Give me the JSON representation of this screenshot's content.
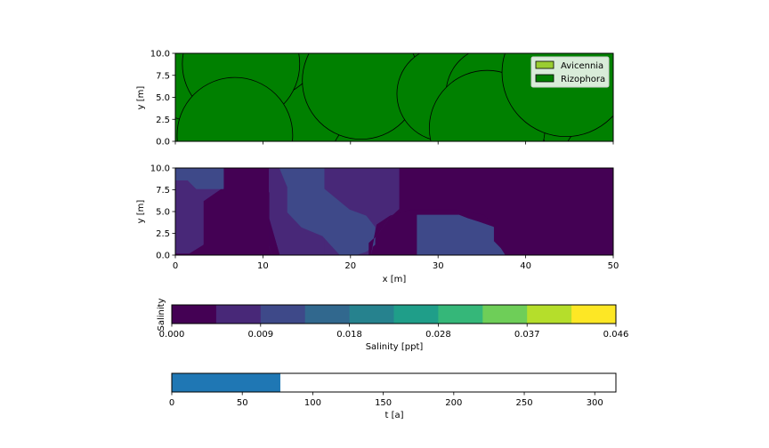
{
  "colors": {
    "axis": "#000000",
    "tree_rizophora": "#008000",
    "tree_avicennia": "#9acd32",
    "progress": "#1f77b4",
    "viridis_levels": [
      "#440154",
      "#482878",
      "#3e4989",
      "#31688e",
      "#26828e",
      "#1f9e89",
      "#35b779",
      "#6ece58",
      "#b5de2b",
      "#fde725"
    ]
  },
  "chart_data": [
    {
      "type": "scatter",
      "subtype": "tree-crowns",
      "ylabel": "y [m]",
      "xlim": [
        0,
        50
      ],
      "ylim": [
        0,
        10
      ],
      "yticks": [
        "0.0",
        "2.5",
        "5.0",
        "7.5",
        "10.0"
      ],
      "legend": {
        "placement": "top-right",
        "items": [
          {
            "label": "Avicennia",
            "color": "#9acd32"
          },
          {
            "label": "Rizophora",
            "color": "#008000"
          }
        ]
      },
      "trees": [
        {
          "species": "Rizophora",
          "x": 9,
          "y": 13,
          "r": 8.5
        },
        {
          "species": "Rizophora",
          "x": 28,
          "y": 13,
          "r": 8.5
        },
        {
          "species": "Rizophora",
          "x": 45,
          "y": 13,
          "r": 8.5
        },
        {
          "species": "Rizophora",
          "x": -2,
          "y": -4,
          "r": 7
        },
        {
          "species": "Rizophora",
          "x": 24,
          "y": -3,
          "r": 6.5
        },
        {
          "species": "Rizophora",
          "x": 37,
          "y": -3,
          "r": 6
        },
        {
          "species": "Rizophora",
          "x": 50,
          "y": -3,
          "r": 6
        },
        {
          "species": "Rizophora",
          "x": 7.5,
          "y": 8.8,
          "r": 6.7
        },
        {
          "species": "Rizophora",
          "x": 21.2,
          "y": 6.9,
          "r": 6.7
        },
        {
          "species": "Rizophora",
          "x": 30.7,
          "y": 5.4,
          "r": 5.4
        },
        {
          "species": "Rizophora",
          "x": 36.3,
          "y": 5.4,
          "r": 5.4
        },
        {
          "species": "Rizophora",
          "x": 35.6,
          "y": 1.5,
          "r": 6.6
        },
        {
          "species": "Rizophora",
          "x": 44.6,
          "y": 7.8,
          "r": 7.3
        },
        {
          "species": "Rizophora",
          "x": 6.8,
          "y": 0.7,
          "r": 6.6
        }
      ]
    },
    {
      "type": "heatmap",
      "subtype": "filled-contour",
      "xlabel": "x [m]",
      "ylabel": "y [m]",
      "xlim": [
        0,
        50
      ],
      "ylim": [
        0,
        10
      ],
      "xticks": [
        "0",
        "10",
        "20",
        "30",
        "40",
        "50"
      ],
      "yticks": [
        "0.0",
        "2.5",
        "5.0",
        "7.5",
        "10.0"
      ],
      "background_level": 0,
      "regions": [
        {
          "level": 1,
          "points": [
            [
              0,
              10
            ],
            [
              5.5,
              10
            ],
            [
              5.5,
              7.8
            ],
            [
              3.2,
              6.2
            ],
            [
              3.2,
              1.2
            ],
            [
              1.6,
              0.2
            ],
            [
              0,
              0.2
            ]
          ]
        },
        {
          "level": 2,
          "points": [
            [
              0,
              10
            ],
            [
              5.5,
              10
            ],
            [
              5.5,
              7.6
            ],
            [
              4.4,
              7.6
            ],
            [
              2.4,
              7.6
            ],
            [
              1.4,
              8.6
            ],
            [
              0,
              8.6
            ]
          ]
        },
        {
          "level": 1,
          "points": [
            [
              10.7,
              10
            ],
            [
              17,
              10
            ],
            [
              17,
              10
            ],
            [
              18,
              9.4
            ],
            [
              21.4,
              7.8
            ],
            [
              23,
              5.6
            ],
            [
              23.3,
              3.5
            ],
            [
              22.9,
              2.2
            ],
            [
              22.3,
              0
            ],
            [
              11.1,
              0
            ],
            [
              10.7,
              1
            ],
            [
              10.7,
              10
            ]
          ]
        },
        {
          "level": 1,
          "points": [
            [
              17,
              10
            ],
            [
              25.6,
              10
            ],
            [
              25.6,
              5.3
            ],
            [
              24.3,
              4.1
            ],
            [
              23,
              2.2
            ],
            [
              22.1,
              1.4
            ],
            [
              22.1,
              0
            ],
            [
              17,
              0
            ],
            [
              17,
              10
            ]
          ]
        },
        {
          "level": 0,
          "points": [
            [
              10.7,
              7.2
            ],
            [
              10.7,
              4.2
            ],
            [
              11.9,
              0
            ],
            [
              11.1,
              0
            ],
            [
              10.7,
              1
            ]
          ]
        },
        {
          "level": 2,
          "points": [
            [
              11.9,
              10
            ],
            [
              17,
              10
            ],
            [
              17,
              7.6
            ],
            [
              19.9,
              5.2
            ],
            [
              21.8,
              4.5
            ],
            [
              22.8,
              3.2
            ],
            [
              22.8,
              1.2
            ],
            [
              21.8,
              0.4
            ],
            [
              20.6,
              0
            ],
            [
              18.8,
              0
            ],
            [
              16.8,
              2.2
            ],
            [
              14.4,
              3.2
            ],
            [
              12.8,
              4.9
            ],
            [
              12.8,
              7.8
            ]
          ]
        },
        {
          "level": 2,
          "points": [
            [
              27.6,
              0
            ],
            [
              37.7,
              0
            ],
            [
              37.2,
              0.8
            ],
            [
              36.4,
              1.6
            ],
            [
              36.4,
              3.2
            ],
            [
              34.7,
              3.8
            ],
            [
              33.4,
              4.2
            ],
            [
              32.4,
              4.6
            ],
            [
              27.6,
              4.6
            ]
          ]
        },
        {
          "level": 0,
          "points": [
            [
              25.6,
              10
            ],
            [
              50,
              10
            ],
            [
              50,
              0
            ],
            [
              37.7,
              0
            ],
            [
              37.2,
              0.8
            ],
            [
              36.4,
              1.6
            ],
            [
              36.4,
              3.2
            ],
            [
              35.3,
              4.6
            ],
            [
              32.1,
              5.2
            ],
            [
              26.8,
              5.2
            ],
            [
              24.5,
              4.5
            ],
            [
              23,
              3.5
            ],
            [
              22.3,
              0
            ],
            [
              22.1,
              0
            ],
            [
              22.1,
              1.4
            ],
            [
              23,
              2.2
            ],
            [
              24.3,
              4.1
            ],
            [
              25.6,
              5.3
            ]
          ]
        }
      ]
    },
    {
      "type": "bar",
      "subtype": "colorbar",
      "title": "Salinity",
      "xlabel": "Salinity [ppt]",
      "vmin": 0,
      "vmax": 0.046,
      "ticks": [
        "0.000",
        "0.009",
        "0.018",
        "0.028",
        "0.037",
        "0.046"
      ],
      "levels": 10
    },
    {
      "type": "bar",
      "subtype": "progress",
      "xlabel": "t [a]",
      "xlim": [
        0,
        315
      ],
      "value": 77,
      "xticks": [
        "0",
        "50",
        "100",
        "150",
        "200",
        "250",
        "300"
      ]
    }
  ]
}
